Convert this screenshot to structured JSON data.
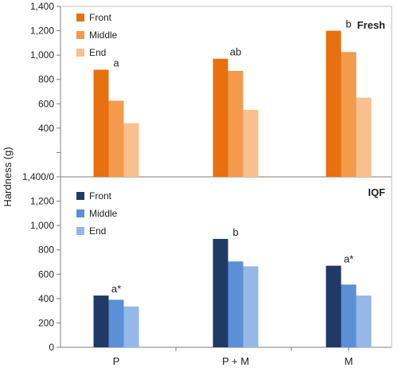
{
  "chart_data": {
    "type": "bar",
    "ylabel": "Hardness (g)",
    "categories": [
      "P",
      "P + M",
      "M"
    ],
    "grid": false,
    "legend_position": "top-left",
    "panels": [
      {
        "title": "Fresh",
        "ylim": [
          0,
          1400
        ],
        "yticks": [
          0,
          200,
          400,
          600,
          800,
          1000,
          1200,
          1400
        ],
        "ytick_labels": [
          "",
          "",
          "400",
          "600",
          "800",
          "1,000",
          "1,200",
          "1,400"
        ],
        "ytick_top_label": "1,400/0",
        "series": [
          {
            "name": "Front",
            "color": "#E8700F",
            "values": [
              880,
              970,
              1200
            ]
          },
          {
            "name": "Middle",
            "color": "#F39A4C",
            "values": [
              625,
              870,
              1025
            ]
          },
          {
            "name": "End",
            "color": "#F8C08F",
            "values": [
              440,
              550,
              650
            ]
          }
        ],
        "annotations": [
          "a",
          "ab",
          "b"
        ]
      },
      {
        "title": "IQF",
        "ylim": [
          0,
          1400
        ],
        "yticks": [
          0,
          200,
          400,
          600,
          800,
          1000,
          1200
        ],
        "ytick_labels": [
          "0",
          "200",
          "400",
          "600",
          "800",
          "1,000",
          "1,200"
        ],
        "series": [
          {
            "name": "Front",
            "color": "#1F3A64",
            "values": [
              425,
              890,
              670
            ]
          },
          {
            "name": "Middle",
            "color": "#5B8FD6",
            "values": [
              390,
              705,
              515
            ]
          },
          {
            "name": "End",
            "color": "#95B8E8",
            "values": [
              335,
              665,
              425
            ]
          }
        ],
        "annotations": [
          "a*",
          "b",
          "a*"
        ]
      }
    ]
  }
}
